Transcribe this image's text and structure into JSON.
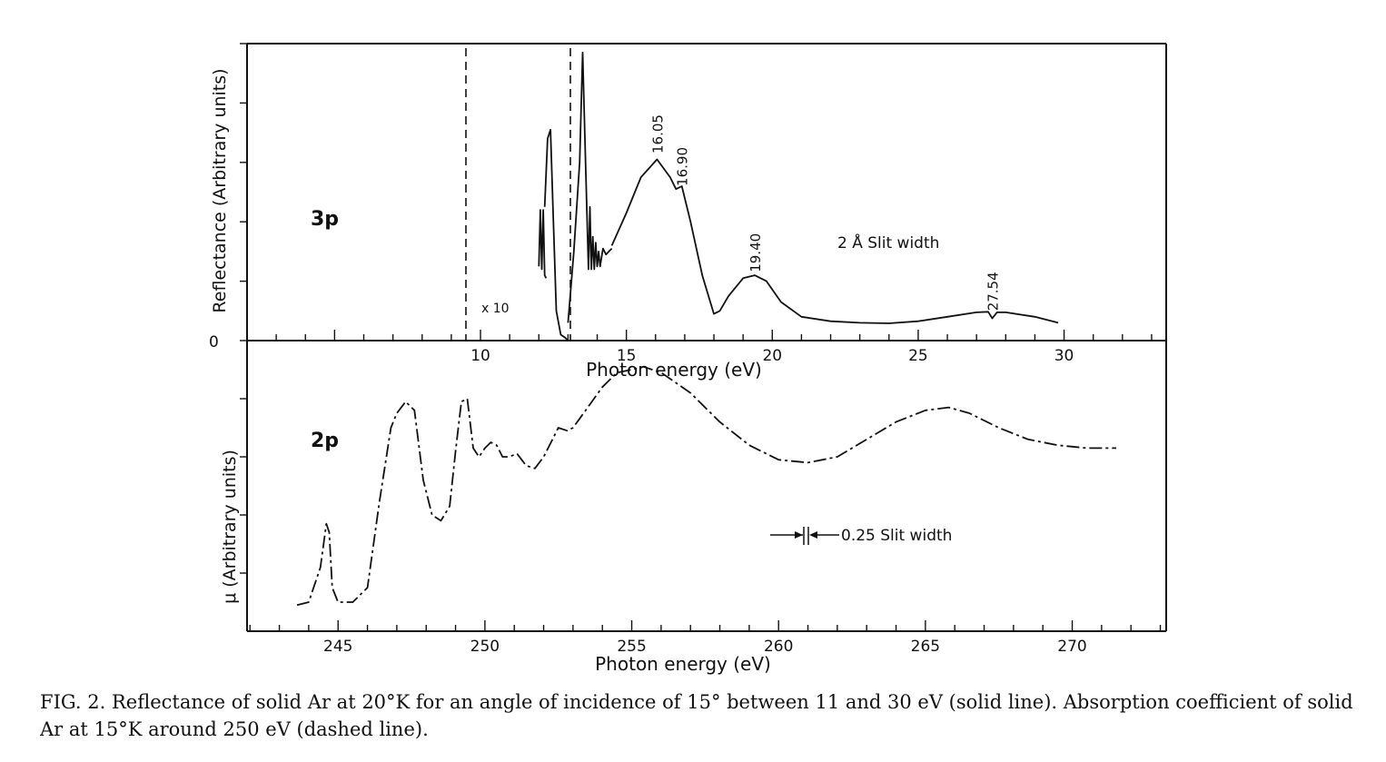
{
  "caption": "FIG. 2.  Reflectance of solid Ar at 20°K for an angle of incidence of 15° between 11 and 30 eV (solid line).  Absorption coefficient of solid Ar at 15°K around 250 eV (dashed line).",
  "chart_data": [
    {
      "type": "line",
      "panel_label": "3p",
      "ylabel": "Reflectance (Arbitrary units)",
      "xlabel": "Photon energy (eV)",
      "xlim": [
        2,
        33.5
      ],
      "ylim": [
        0,
        1
      ],
      "x_ticks": [
        "10",
        "15",
        "20",
        "25",
        "30"
      ],
      "y_ticks": [
        "0"
      ],
      "magnified_region": {
        "x_range": [
          11,
          14.5
        ],
        "label": "x 10"
      },
      "slit_note": "2 Å Slit width",
      "peak_labels": [
        {
          "x": 16.05,
          "y": 0.63,
          "text": "16.05"
        },
        {
          "x": 16.9,
          "y": 0.52,
          "text": "16.90"
        },
        {
          "x": 19.4,
          "y": 0.23,
          "text": "19.40"
        },
        {
          "x": 27.54,
          "y": 0.1,
          "text": "27.54"
        }
      ],
      "series": [
        {
          "style": "solid",
          "segment_x10_a": {
            "x": [
              12.0,
              12.05,
              12.1,
              12.15,
              12.2,
              12.25
            ],
            "y": [
              0.25,
              0.44,
              0.24,
              0.44,
              0.22,
              0.21
            ]
          },
          "segment_main_a": {
            "x": [
              12.2,
              12.3,
              12.4,
              12.5,
              12.6,
              12.75,
              12.9,
              13.0
            ],
            "y": [
              0.45,
              0.68,
              0.71,
              0.4,
              0.1,
              0.02,
              0.01,
              0.0
            ]
          },
          "segment_x10_b": {
            "x": [
              13.0,
              13.2,
              13.4,
              13.5,
              13.6,
              13.7,
              13.75,
              13.8,
              13.85,
              13.9,
              13.95,
              14.0,
              14.05,
              14.1,
              14.2,
              14.3,
              14.4,
              14.5
            ],
            "y": [
              0.06,
              0.3,
              0.6,
              0.97,
              0.6,
              0.24,
              0.45,
              0.24,
              0.35,
              0.24,
              0.33,
              0.25,
              0.3,
              0.25,
              0.31,
              0.29,
              0.3,
              0.31
            ]
          },
          "segment_main_b": {
            "x": [
              14.5,
              15.0,
              15.5,
              16.05,
              16.5,
              16.7,
              16.9,
              17.2,
              17.6,
              18.0,
              18.2,
              18.5,
              19.0,
              19.4,
              19.8,
              20.3,
              21.0,
              22.0,
              23.0,
              24.0,
              25.0,
              26.0,
              27.0,
              27.4,
              27.54,
              27.7,
              28.0,
              29.0,
              29.8
            ],
            "y": [
              0.32,
              0.43,
              0.55,
              0.61,
              0.55,
              0.51,
              0.52,
              0.4,
              0.22,
              0.09,
              0.1,
              0.15,
              0.21,
              0.22,
              0.2,
              0.13,
              0.08,
              0.065,
              0.06,
              0.058,
              0.065,
              0.08,
              0.095,
              0.097,
              0.075,
              0.095,
              0.095,
              0.08,
              0.06
            ]
          }
        }
      ]
    },
    {
      "type": "line",
      "panel_label": "2p",
      "ylabel": "μ (Arbitrary units)",
      "xlabel": "Photon energy (eV)",
      "xlim": [
        241.9,
        273.2
      ],
      "ylim": [
        0,
        1
      ],
      "x_ticks": [
        "245",
        "250",
        "255",
        "260",
        "265",
        "270"
      ],
      "slit_note": "0.25 Slit width",
      "series": [
        {
          "style": "dashdot",
          "x": [
            243.6,
            244.0,
            244.4,
            244.6,
            244.7,
            244.8,
            245.0,
            245.5,
            246.0,
            246.4,
            246.8,
            247.0,
            247.3,
            247.6,
            247.9,
            248.2,
            248.5,
            248.8,
            249.0,
            249.2,
            249.4,
            249.6,
            249.8,
            250.0,
            250.2,
            250.4,
            250.6,
            250.8,
            251.1,
            251.4,
            251.7,
            252.0,
            252.3,
            252.5,
            252.8,
            253.0,
            253.5,
            254.0,
            254.5,
            255.0,
            255.4,
            256.0,
            257.0,
            258.0,
            259.0,
            260.0,
            261.0,
            262.0,
            263.0,
            264.0,
            265.0,
            265.8,
            266.5,
            267.5,
            268.5,
            269.5,
            270.5,
            271.5
          ],
          "y": [
            0.09,
            0.1,
            0.22,
            0.37,
            0.34,
            0.15,
            0.1,
            0.1,
            0.15,
            0.44,
            0.7,
            0.75,
            0.79,
            0.76,
            0.52,
            0.4,
            0.38,
            0.43,
            0.62,
            0.79,
            0.8,
            0.63,
            0.6,
            0.63,
            0.65,
            0.64,
            0.6,
            0.6,
            0.61,
            0.57,
            0.56,
            0.6,
            0.66,
            0.7,
            0.69,
            0.7,
            0.77,
            0.84,
            0.89,
            0.9,
            0.91,
            0.89,
            0.82,
            0.72,
            0.64,
            0.59,
            0.58,
            0.6,
            0.66,
            0.72,
            0.76,
            0.77,
            0.75,
            0.7,
            0.66,
            0.64,
            0.63,
            0.63
          ]
        }
      ]
    }
  ]
}
